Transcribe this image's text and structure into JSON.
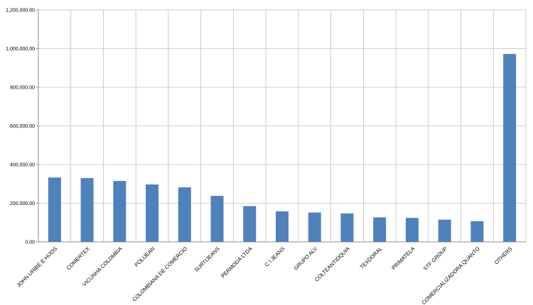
{
  "chart_data": {
    "type": "bar",
    "title": "",
    "xlabel": "",
    "ylabel": "",
    "categories": [
      "JOHN URIBE E HIJOS",
      "COMERTEX",
      "VICUNHA COLOMBIA",
      "POLIJEAN",
      "COLOMBIANA DE COMERCIO",
      "SURTIJEANS",
      "PERMODA LTDA",
      "C I JEANS",
      "GRUPO ALV",
      "COLTEANTIOQUIA",
      "TEXDORAL",
      "PRIMATELA",
      "STF GROUP",
      "COMERCIALIZADORA QUANTO",
      "OTHERS"
    ],
    "values": [
      333000,
      330000,
      315000,
      297000,
      282000,
      238000,
      185000,
      158000,
      152000,
      147000,
      127000,
      124000,
      115000,
      107000,
      972000
    ],
    "ylim": [
      0,
      1200000
    ],
    "yticks": [
      "0.00",
      "200,000.00",
      "400,000.00",
      "600,000.00",
      "800,000.00",
      "1,000,000.00",
      "1,200,000.00"
    ],
    "grid": true,
    "legend": "none",
    "bar_color": "#4f81bd"
  }
}
